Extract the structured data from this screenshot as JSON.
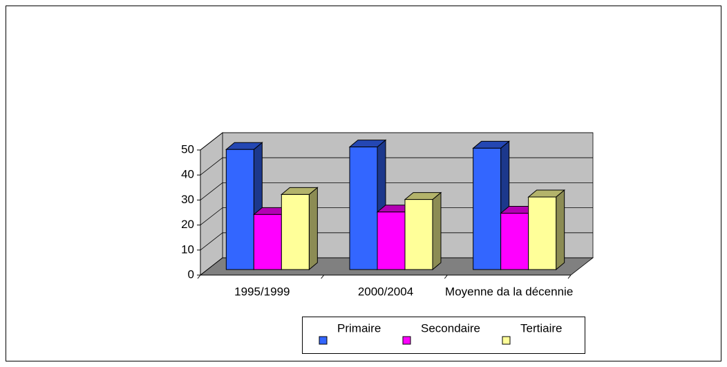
{
  "chart_data": {
    "type": "bar3d",
    "categories": [
      "1995/1999",
      "2000/2004",
      "Moyenne da la décennie"
    ],
    "series": [
      {
        "name": "Primaire",
        "color": "#3366ff",
        "values": [
          48,
          49,
          48.5
        ]
      },
      {
        "name": "Secondaire",
        "color": "#ff00ff",
        "values": [
          22,
          23,
          22.5
        ]
      },
      {
        "name": "Tertiaire",
        "color": "#ffff99",
        "values": [
          30,
          28,
          29
        ]
      }
    ],
    "ylim": [
      0,
      50
    ],
    "yticks": [
      0,
      10,
      20,
      30,
      40,
      50
    ],
    "grid": true,
    "legend": "bottom"
  }
}
